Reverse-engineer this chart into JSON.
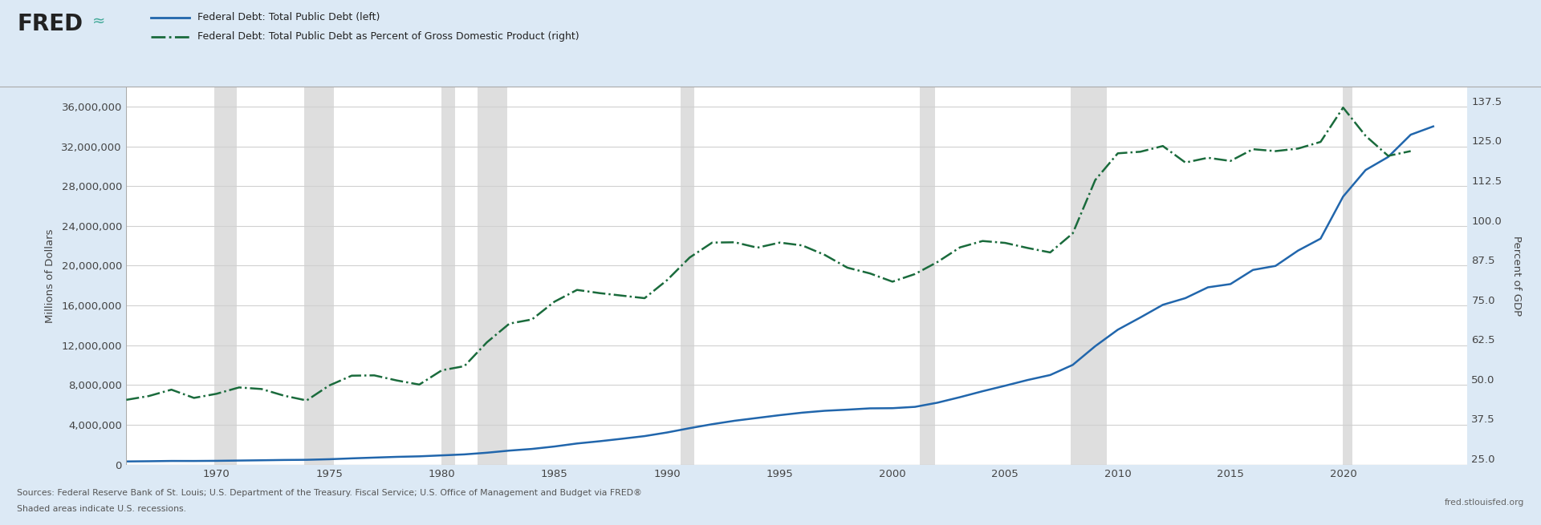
{
  "legend_line1": "Federal Debt: Total Public Debt (left)",
  "legend_line2": "Federal Debt: Total Public Debt as Percent of Gross Domestic Product (right)",
  "ylabel_left": "Millions of Dollars",
  "ylabel_right": "Percent of GDP",
  "source_text": "Sources: Federal Reserve Bank of St. Louis; U.S. Department of the Treasury. Fiscal Service; U.S. Office of Management and Budget via FRED®",
  "shaded_text": "Shaded areas indicate U.S. recessions.",
  "fred_url": "fred.stlouisfed.org",
  "background_color": "#dce9f5",
  "plot_bg_color": "#ffffff",
  "line1_color": "#2166ac",
  "line2_color": "#1a6b3c",
  "ylim_left": [
    0,
    38000000
  ],
  "ylim_right": [
    23.0,
    142.0
  ],
  "yticks_left": [
    0,
    4000000,
    8000000,
    12000000,
    16000000,
    20000000,
    24000000,
    28000000,
    32000000,
    36000000
  ],
  "ytick_labels_left": [
    "0",
    "4,000,000",
    "8,000,000",
    "12,000,000",
    "16,000,000",
    "20,000,000",
    "24,000,000",
    "28,000,000",
    "32,000,000",
    "36,000,000"
  ],
  "yticks_right": [
    25.0,
    37.5,
    50.0,
    62.5,
    75.0,
    87.5,
    100.0,
    112.5,
    125.0,
    137.5
  ],
  "ytick_labels_right": [
    "25.0",
    "37.5",
    "50.0",
    "62.5",
    "75.0",
    "87.5",
    "100.0",
    "112.5",
    "125.0",
    "137.5"
  ],
  "xlim": [
    1966.0,
    2025.5
  ],
  "xticks": [
    1970,
    1975,
    1980,
    1985,
    1990,
    1995,
    2000,
    2005,
    2010,
    2015,
    2020
  ],
  "recession_bands": [
    [
      1969.9,
      1970.9
    ],
    [
      1973.9,
      1975.2
    ],
    [
      1980.0,
      1980.6
    ],
    [
      1981.6,
      1982.9
    ],
    [
      1990.6,
      1991.2
    ],
    [
      2001.2,
      2001.9
    ],
    [
      2007.9,
      2009.5
    ],
    [
      2020.0,
      2020.4
    ]
  ],
  "debt_years": [
    1966,
    1967,
    1968,
    1969,
    1970,
    1971,
    1972,
    1973,
    1974,
    1975,
    1976,
    1977,
    1978,
    1979,
    1980,
    1981,
    1982,
    1983,
    1984,
    1985,
    1986,
    1987,
    1988,
    1989,
    1990,
    1991,
    1992,
    1993,
    1994,
    1995,
    1996,
    1997,
    1998,
    1999,
    2000,
    2001,
    2002,
    2003,
    2004,
    2005,
    2006,
    2007,
    2008,
    2009,
    2010,
    2011,
    2012,
    2013,
    2014,
    2015,
    2016,
    2017,
    2018,
    2019,
    2020,
    2021,
    2022,
    2023,
    2024
  ],
  "debt_values": [
    319907,
    341342,
    369769,
    367141,
    382603,
    409481,
    437333,
    468426,
    485012,
    541925,
    630034,
    706398,
    780425,
    833751,
    930210,
    1028729,
    1197073,
    1410702,
    1577185,
    1823103,
    2125302,
    2350277,
    2602337,
    2867807,
    3233313,
    3665303,
    4064620,
    4411488,
    4692749,
    4973982,
    5224811,
    5413146,
    5526193,
    5656270,
    5674178,
    5807463,
    6228235,
    6783231,
    7379052,
    7932709,
    8506973,
    9007653,
    10024725,
    11909829,
    13561623,
    14790340,
    16066241,
    16738184,
    17824071,
    18150617,
    19573444,
    19976827,
    21516058,
    22719401,
    26945391,
    29617190,
    30928911,
    33167000,
    34001000
  ],
  "gdp_pct_years": [
    1966,
    1967,
    1968,
    1969,
    1970,
    1971,
    1972,
    1973,
    1974,
    1975,
    1976,
    1977,
    1978,
    1979,
    1980,
    1981,
    1982,
    1983,
    1984,
    1985,
    1986,
    1987,
    1988,
    1989,
    1990,
    1991,
    1992,
    1993,
    1994,
    1995,
    1996,
    1997,
    1998,
    1999,
    2000,
    2001,
    2002,
    2003,
    2004,
    2005,
    2006,
    2007,
    2008,
    2009,
    2010,
    2011,
    2012,
    2013,
    2014,
    2015,
    2016,
    2017,
    2018,
    2019,
    2020,
    2021,
    2022,
    2023
  ],
  "gdp_pct_values": [
    43.4,
    44.6,
    46.6,
    44.0,
    45.3,
    47.3,
    46.8,
    44.7,
    43.2,
    47.9,
    51.0,
    51.1,
    49.5,
    48.2,
    52.7,
    54.0,
    61.5,
    67.4,
    68.7,
    74.3,
    78.0,
    77.0,
    76.2,
    75.4,
    81.1,
    88.2,
    92.9,
    93.0,
    91.3,
    92.9,
    92.0,
    89.0,
    85.0,
    83.2,
    80.6,
    83.0,
    86.8,
    91.4,
    93.4,
    92.8,
    91.2,
    89.8,
    95.8,
    112.6,
    121.0,
    121.5,
    123.3,
    118.1,
    119.6,
    118.6,
    122.3,
    121.7,
    122.5,
    124.6,
    135.4,
    126.5,
    120.2,
    121.7
  ]
}
